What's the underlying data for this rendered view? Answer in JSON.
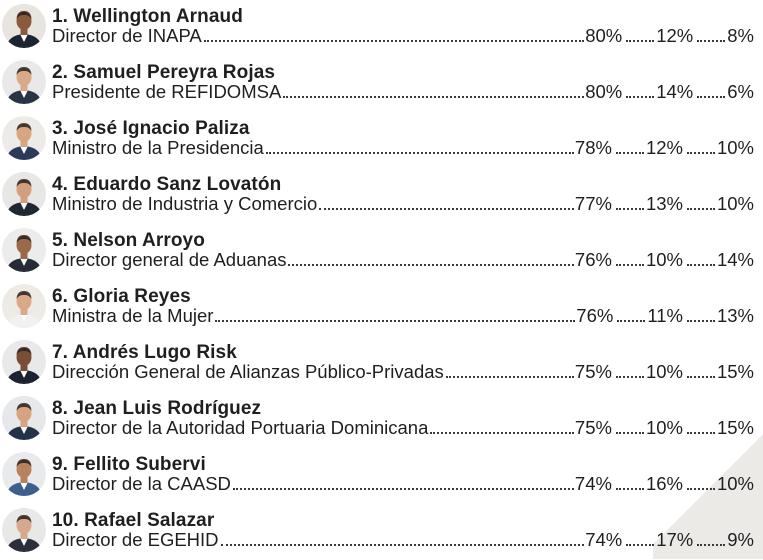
{
  "rows": [
    {
      "name": "1. Wellington Arnaud",
      "role": "Director de INAPA",
      "p1": "80%",
      "p2": "12%",
      "p3": "8%",
      "avatar": "person-photo",
      "bg": "#e8e4df",
      "skin": "#8a5a3c",
      "suit": "#1d2533"
    },
    {
      "name": "2. Samuel Pereyra Rojas",
      "role": "Presidente de REFIDOMSA",
      "p1": "80%",
      "p2": "14%",
      "p3": "6%",
      "avatar": "person-photo",
      "bg": "#e9e9ea",
      "skin": "#d9a988",
      "suit": "#2a3447"
    },
    {
      "name": "3. José Ignacio Paliza",
      "role": "Ministro de la Presidencia",
      "p1": "78%",
      "p2": "12%",
      "p3": "10%",
      "avatar": "person-photo",
      "bg": "#ecebe8",
      "skin": "#d8a57f",
      "suit": "#2b3a5a"
    },
    {
      "name": "4. Eduardo Sanz Lovatón",
      "role": "Ministro de Industria y Comercio",
      "p1": "77%",
      "p2": "13%",
      "p3": "10%",
      "avatar": "person-photo",
      "bg": "#e7e7e6",
      "skin": "#d2a07e",
      "suit": "#1f2634"
    },
    {
      "name": "5. Nelson Arroyo",
      "role": "Director general de Aduanas",
      "p1": "76%",
      "p2": "10%",
      "p3": "14%",
      "avatar": "person-photo",
      "bg": "#ececec",
      "skin": "#9b6a4a",
      "suit": "#262b36"
    },
    {
      "name": "6. Gloria Reyes",
      "role": "Ministra de la Mujer",
      "p1": "76%",
      "p2": "11%",
      "p3": "13%",
      "avatar": "person-photo",
      "bg": "#eeeae6",
      "skin": "#d9a98a",
      "suit": "#f1f1f1"
    },
    {
      "name": "7. Andrés Lugo Risk",
      "role": "Dirección General de Alianzas Público-Privadas",
      "p1": "75%",
      "p2": "10%",
      "p3": "15%",
      "avatar": "person-photo",
      "bg": "#e9e9e9",
      "skin": "#7a4e34",
      "suit": "#1c2230"
    },
    {
      "name": "8. Jean Luis Rodríguez",
      "role": "Director de la Autoridad Portuaria Dominicana",
      "p1": "75%",
      "p2": "10%",
      "p3": "15%",
      "avatar": "person-photo",
      "bg": "#e6e8ea",
      "skin": "#d6a382",
      "suit": "#24324a"
    },
    {
      "name": "9. Fellito Subervi",
      "role": "Director de la CAASD",
      "p1": "74%",
      "p2": "16%",
      "p3": "10%",
      "avatar": "person-photo",
      "bg": "#e9eaec",
      "skin": "#b9825d",
      "suit": "#3b5f8f"
    },
    {
      "name": "10. Rafael Salazar",
      "role": "Director de EGEHID",
      "p1": "74%",
      "p2": "17%",
      "p3": "9%",
      "avatar": "person-photo",
      "bg": "#e8e8e8",
      "skin": "#d7a98c",
      "suit": "#2a2f3b"
    }
  ]
}
